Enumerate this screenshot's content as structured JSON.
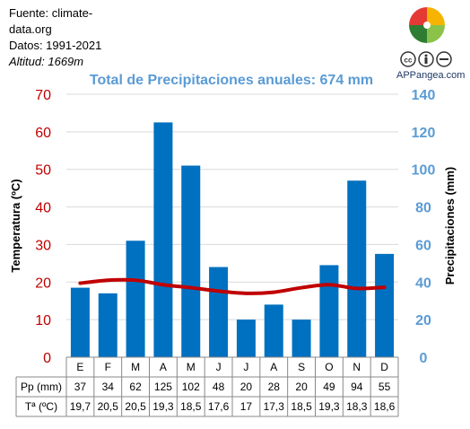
{
  "source": {
    "line1": "Fuente: climate-",
    "line2": "data.org",
    "line3": "Datos: 1991-2021",
    "line4": "Altitud: 1669m"
  },
  "branding": {
    "site": "APPangea.com",
    "logo_icon": "puzzle-logo-icon",
    "license_icon": "creative-commons-icon"
  },
  "chart_data": {
    "type": "bar+line",
    "title": "Total de Precipitaciones anuales: 674 mm",
    "categories": [
      "E",
      "F",
      "M",
      "A",
      "M",
      "J",
      "J",
      "A",
      "S",
      "O",
      "N",
      "D"
    ],
    "series": [
      {
        "name": "Pp (mm)",
        "type": "bar",
        "axis": "right",
        "color": "#0070c0",
        "values": [
          37,
          34,
          62,
          125,
          102,
          48,
          20,
          28,
          20,
          49,
          94,
          55
        ]
      },
      {
        "name": "Tª (ºC)",
        "type": "line",
        "axis": "left",
        "color": "#c00000",
        "values": [
          19.7,
          20.5,
          20.5,
          19.3,
          18.5,
          17.6,
          17,
          17.3,
          18.5,
          19.3,
          18.3,
          18.6
        ]
      }
    ],
    "ylabel_left": "Temperatura (ºC)",
    "ylabel_right": "Precipitaciones (mm)",
    "ylim_left": [
      0,
      70
    ],
    "ylim_right": [
      0,
      140
    ],
    "yticks_left": [
      "0",
      "10",
      "20",
      "30",
      "40",
      "50",
      "60",
      "70"
    ],
    "yticks_right": [
      "0",
      "20",
      "40",
      "60",
      "80",
      "100",
      "120",
      "140"
    ],
    "grid": true,
    "table": {
      "rows": [
        {
          "label": "Pp (mm)",
          "cells": [
            "37",
            "34",
            "62",
            "125",
            "102",
            "48",
            "20",
            "28",
            "20",
            "49",
            "94",
            "55"
          ]
        },
        {
          "label": "Tª (ºC)",
          "cells": [
            "19,7",
            "20,5",
            "20,5",
            "19,3",
            "18,5",
            "17,6",
            "17",
            "17,3",
            "18,5",
            "19,3",
            "18,3",
            "18,6"
          ]
        }
      ]
    }
  }
}
